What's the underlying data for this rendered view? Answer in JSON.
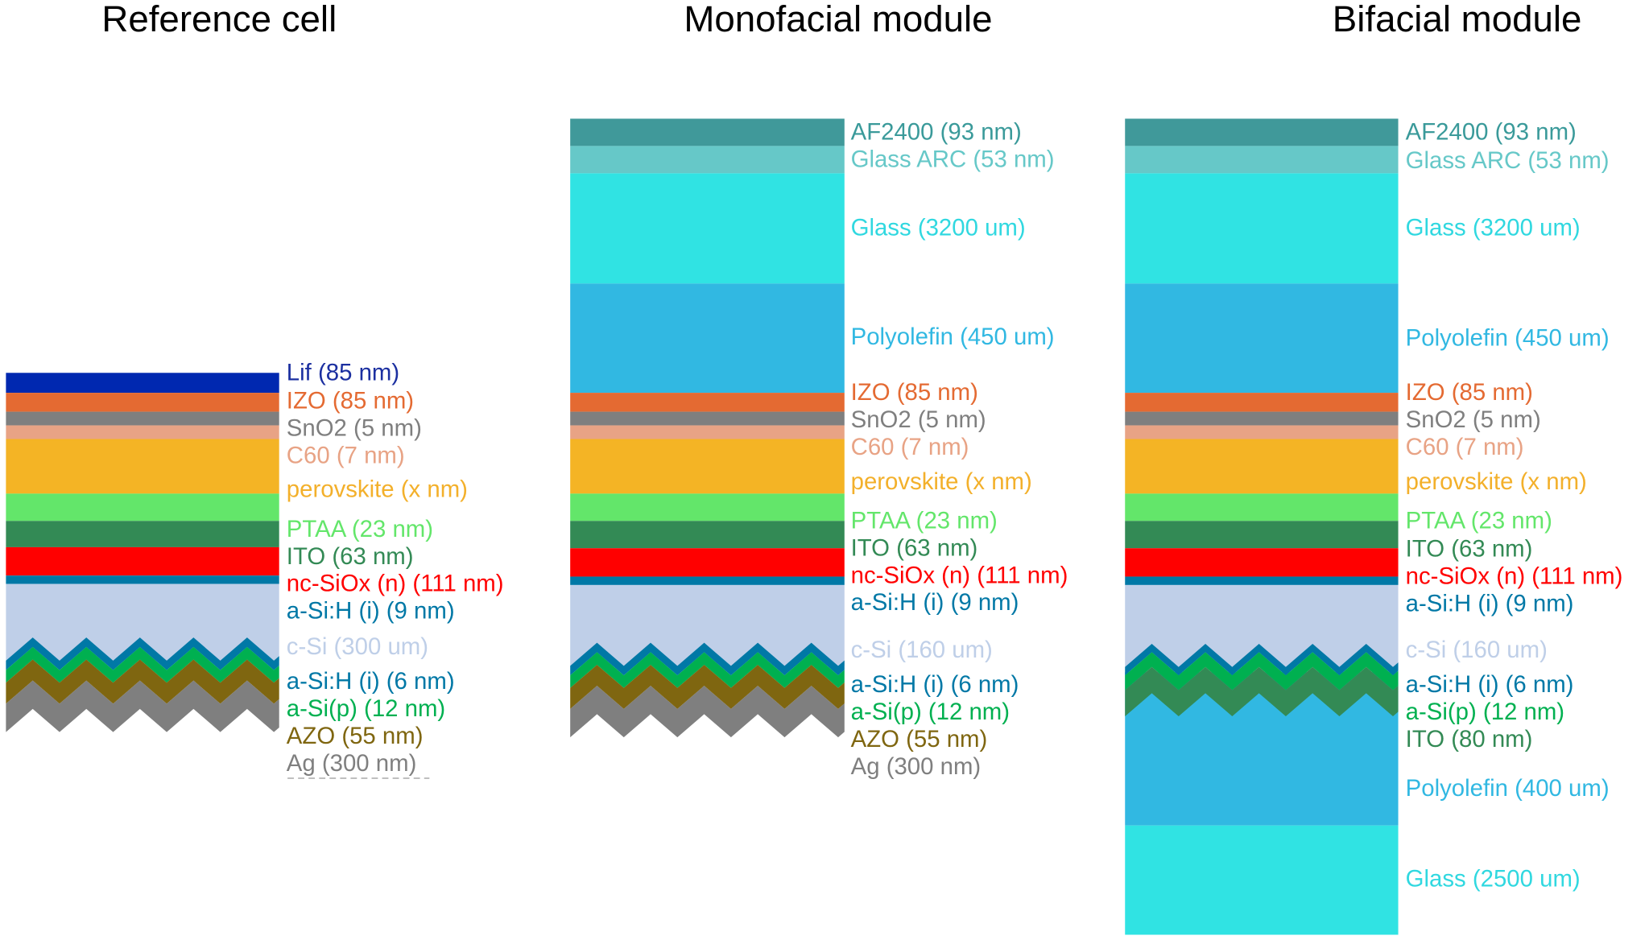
{
  "panels": [
    {
      "title": "Reference cell",
      "layers": [
        {
          "label": "Lif (85 nm)",
          "color": "#0028b0",
          "text_color": "#1b2fa0"
        },
        {
          "label": "IZO (85 nm)",
          "color": "#e46a32",
          "text_color": "#e46a32"
        },
        {
          "label": "SnO2 (5 nm)",
          "color": "#7f7f7f",
          "text_color": "#7f7f7f"
        },
        {
          "label": "C60 (7 nm)",
          "color": "#e8a385",
          "text_color": "#e8a385"
        },
        {
          "label": "perovskite (x nm)",
          "color": "#f4b425",
          "text_color": "#f3b02b"
        },
        {
          "label": "PTAA (23 nm)",
          "color": "#63e66a",
          "text_color": "#63e66a"
        },
        {
          "label": "ITO (63 nm)",
          "color": "#338a55",
          "text_color": "#338a55"
        },
        {
          "label": "nc-SiOx (n) (111 nm)",
          "color": "#ff0000",
          "text_color": "#ff0000"
        },
        {
          "label": "a-Si:H (i) (9 nm)",
          "color": "#0078a6",
          "text_color": "#0078a6"
        },
        {
          "label": "c-Si (300 um)",
          "color": "#bfcfe8",
          "text_color": "#bfcfe8"
        },
        {
          "label": "a-Si:H (i) (6 nm)",
          "color": "#0078a6",
          "text_color": "#0078a6"
        },
        {
          "label": "a-Si(p) (12 nm)",
          "color": "#00b050",
          "text_color": "#00b050"
        },
        {
          "label": "AZO (55 nm)",
          "color": "#7f6610",
          "text_color": "#7f6610"
        },
        {
          "label": "Ag (300 nm)",
          "color": "#7f7f7f",
          "text_color": "#7f7f7f"
        }
      ]
    },
    {
      "title": "Monofacial module",
      "layers": [
        {
          "label": "AF2400 (93 nm)",
          "color": "#40999a",
          "text_color": "#3a9a9a"
        },
        {
          "label": "Glass ARC (53 nm)",
          "color": "#66c8c8",
          "text_color": "#66c8c8"
        },
        {
          "label": "Glass (3200 um)",
          "color": "#30e3e3",
          "text_color": "#30d8e0"
        },
        {
          "label": "Polyolefin (450 um)",
          "color": "#31b8e2",
          "text_color": "#31b8e2"
        },
        {
          "label": "IZO (85 nm)",
          "color": "#e46a32",
          "text_color": "#e46a32"
        },
        {
          "label": "SnO2 (5 nm)",
          "color": "#7f7f7f",
          "text_color": "#7f7f7f"
        },
        {
          "label": "C60 (7 nm)",
          "color": "#e8a385",
          "text_color": "#e8a385"
        },
        {
          "label": "perovskite (x nm)",
          "color": "#f4b425",
          "text_color": "#f3b02b"
        },
        {
          "label": "PTAA (23 nm)",
          "color": "#63e66a",
          "text_color": "#63e66a"
        },
        {
          "label": "ITO (63 nm)",
          "color": "#338a55",
          "text_color": "#338a55"
        },
        {
          "label": "nc-SiOx (n) (111 nm)",
          "color": "#ff0000",
          "text_color": "#ff0000"
        },
        {
          "label": "a-Si:H (i) (9 nm)",
          "color": "#0078a6",
          "text_color": "#0078a6"
        },
        {
          "label": "c-Si (160 um)",
          "color": "#bfcfe8",
          "text_color": "#bfcfe8"
        },
        {
          "label": "a-Si:H (i) (6 nm)",
          "color": "#0078a6",
          "text_color": "#0078a6"
        },
        {
          "label": "a-Si(p) (12 nm)",
          "color": "#00b050",
          "text_color": "#00b050"
        },
        {
          "label": "AZO (55 nm)",
          "color": "#7f6610",
          "text_color": "#7f6610"
        },
        {
          "label": "Ag (300 nm)",
          "color": "#7f7f7f",
          "text_color": "#7f7f7f"
        }
      ]
    },
    {
      "title": "Bifacial module",
      "layers": [
        {
          "label": "AF2400 (93 nm)",
          "color": "#40999a",
          "text_color": "#3a9a9a"
        },
        {
          "label": "Glass ARC (53 nm)",
          "color": "#66c8c8",
          "text_color": "#66c8c8"
        },
        {
          "label": "Glass (3200 um)",
          "color": "#30e3e3",
          "text_color": "#30d8e0"
        },
        {
          "label": "Polyolefin (450 um)",
          "color": "#31b8e2",
          "text_color": "#31b8e2"
        },
        {
          "label": "IZO (85 nm)",
          "color": "#e46a32",
          "text_color": "#e46a32"
        },
        {
          "label": "SnO2 (5 nm)",
          "color": "#7f7f7f",
          "text_color": "#7f7f7f"
        },
        {
          "label": "C60 (7 nm)",
          "color": "#e8a385",
          "text_color": "#e8a385"
        },
        {
          "label": "perovskite (x nm)",
          "color": "#f4b425",
          "text_color": "#f3b02b"
        },
        {
          "label": "PTAA (23 nm)",
          "color": "#63e66a",
          "text_color": "#63e66a"
        },
        {
          "label": "ITO (63 nm)",
          "color": "#338a55",
          "text_color": "#338a55"
        },
        {
          "label": "nc-SiOx (n) (111 nm)",
          "color": "#ff0000",
          "text_color": "#ff0000"
        },
        {
          "label": "a-Si:H (i) (9 nm)",
          "color": "#0078a6",
          "text_color": "#0078a6"
        },
        {
          "label": "c-Si (160 um)",
          "color": "#bfcfe8",
          "text_color": "#bfcfe8"
        },
        {
          "label": "a-Si:H (i) (6 nm)",
          "color": "#0078a6",
          "text_color": "#0078a6"
        },
        {
          "label": "a-Si(p) (12 nm)",
          "color": "#00b050",
          "text_color": "#00b050"
        },
        {
          "label": "ITO (80 nm)",
          "color": "#338a55",
          "text_color": "#338a55"
        },
        {
          "label": "Polyolefin (400 um)",
          "color": "#31b8e2",
          "text_color": "#31b8e2"
        },
        {
          "label": "Glass  (2500 um)",
          "color": "#30e3e3",
          "text_color": "#30d8e0"
        }
      ]
    }
  ]
}
